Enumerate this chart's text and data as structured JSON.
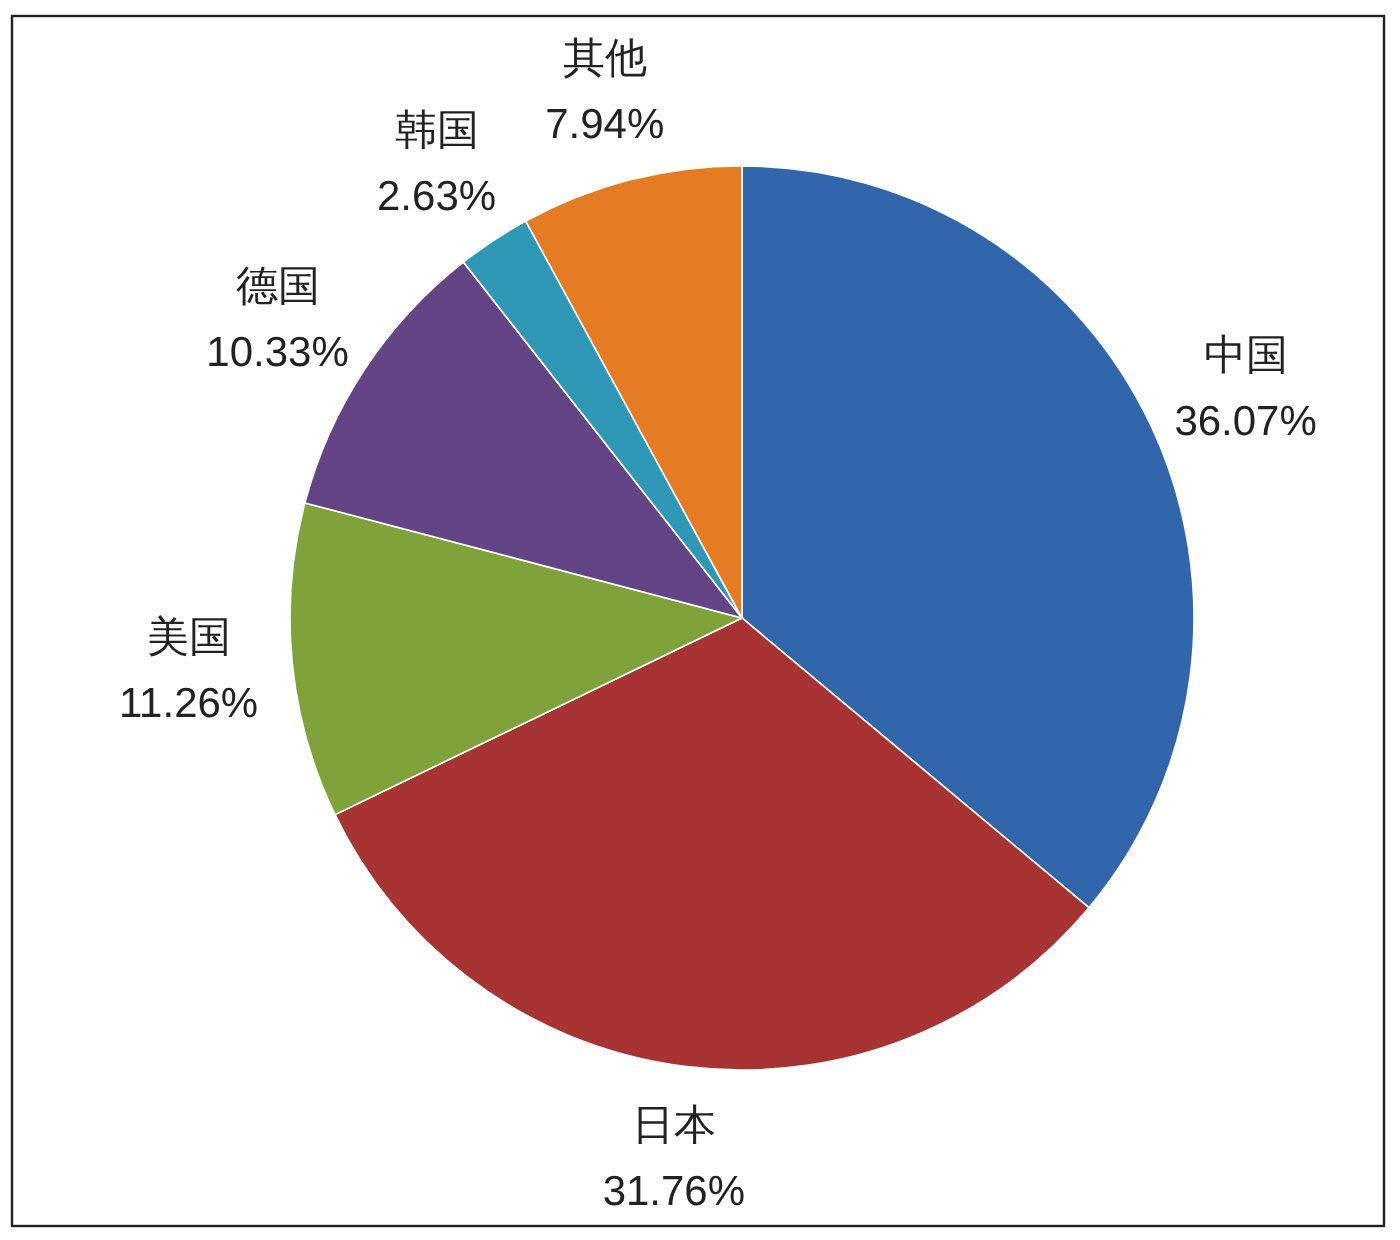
{
  "chart_data": {
    "type": "pie",
    "categories": [
      "中国",
      "日本",
      "美国",
      "德国",
      "韩国",
      "其他"
    ],
    "values": [
      36.07,
      31.76,
      11.26,
      10.33,
      2.63,
      7.94
    ],
    "colors": [
      "#3266ab",
      "#a73332",
      "#80a23a",
      "#634586",
      "#2f98b6",
      "#e57b22"
    ],
    "value_labels": [
      "36.07%",
      "31.76%",
      "11.26%",
      "10.33%",
      "2.63%",
      "7.94%"
    ]
  }
}
